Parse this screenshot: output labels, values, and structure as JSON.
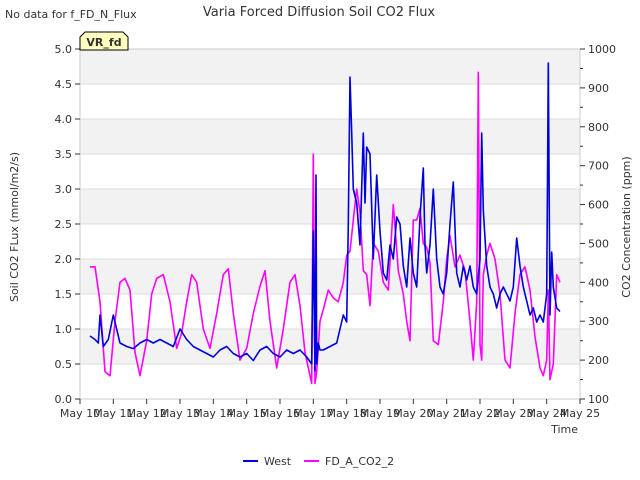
{
  "top_note": "No data for f_FD_N_Flux",
  "badge": "VR_fd",
  "colors": {
    "west": "#0000dd",
    "fd": "#ff00ff",
    "band": "#f2f2f2",
    "badge_bg": "#ffffc0",
    "badge_text": "#8b0000"
  },
  "chart_data": {
    "type": "line",
    "title": "Varia Forced Diffusion Soil CO2 Flux",
    "xlabel": "Time",
    "ylabel": "Soil CO2 FLux (mmol/m2/s)",
    "y2label": "CO2 Concentration (ppm)",
    "x_ticks": [
      "May 10",
      "May 11",
      "May 12",
      "May 13",
      "May 14",
      "May 15",
      "May 16",
      "May 17",
      "May 18",
      "May 19",
      "May 20",
      "May 21",
      "May 22",
      "May 23",
      "May 24",
      "May 25"
    ],
    "xlim": [
      10,
      25
    ],
    "ylim": [
      0,
      5
    ],
    "y_ticks": [
      "0.0",
      "0.5",
      "1.0",
      "1.5",
      "2.0",
      "2.5",
      "3.0",
      "3.5",
      "4.0",
      "4.5",
      "5.0"
    ],
    "y2lim": [
      100,
      1000
    ],
    "y2_ticks": [
      "100",
      "200",
      "300",
      "400",
      "500",
      "600",
      "700",
      "800",
      "900",
      "1000"
    ],
    "legend_position": "bottom-center",
    "series": [
      {
        "name": "West",
        "axis": "left",
        "x": [
          10.3,
          10.45,
          10.55,
          10.6,
          10.7,
          10.85,
          11.0,
          11.2,
          11.4,
          11.6,
          11.8,
          12.0,
          12.2,
          12.4,
          12.6,
          12.8,
          13.0,
          13.2,
          13.4,
          13.6,
          13.8,
          14.0,
          14.2,
          14.4,
          14.6,
          14.8,
          15.0,
          15.2,
          15.4,
          15.6,
          15.8,
          16.0,
          16.2,
          16.4,
          16.6,
          16.8,
          16.95,
          17.0,
          17.05,
          17.08,
          17.1,
          17.15,
          17.2,
          17.3,
          17.5,
          17.7,
          17.9,
          18.0,
          18.05,
          18.1,
          18.15,
          18.2,
          18.3,
          18.4,
          18.5,
          18.55,
          18.6,
          18.7,
          18.8,
          18.9,
          19.0,
          19.1,
          19.2,
          19.3,
          19.4,
          19.5,
          19.6,
          19.7,
          19.8,
          19.9,
          20.0,
          20.1,
          20.2,
          20.3,
          20.35,
          20.4,
          20.5,
          20.6,
          20.7,
          20.8,
          20.9,
          21.0,
          21.1,
          21.2,
          21.3,
          21.4,
          21.5,
          21.6,
          21.7,
          21.8,
          21.9,
          22.0,
          22.05,
          22.1,
          22.2,
          22.3,
          22.4,
          22.5,
          22.6,
          22.7,
          22.8,
          22.9,
          23.0,
          23.1,
          23.2,
          23.3,
          23.4,
          23.5,
          23.6,
          23.7,
          23.8,
          23.9,
          24.0,
          24.05,
          24.1,
          24.15,
          24.2,
          24.3,
          24.4
        ],
        "values": [
          0.9,
          0.85,
          0.8,
          1.2,
          0.75,
          0.85,
          1.2,
          0.8,
          0.75,
          0.72,
          0.8,
          0.85,
          0.8,
          0.85,
          0.8,
          0.75,
          1.0,
          0.85,
          0.75,
          0.7,
          0.65,
          0.6,
          0.7,
          0.75,
          0.65,
          0.6,
          0.65,
          0.55,
          0.7,
          0.75,
          0.65,
          0.6,
          0.7,
          0.65,
          0.7,
          0.6,
          0.5,
          2.4,
          0.4,
          3.2,
          0.5,
          0.8,
          0.7,
          0.7,
          0.75,
          0.8,
          1.2,
          1.1,
          2.5,
          4.6,
          3.8,
          3.0,
          2.8,
          2.2,
          3.8,
          2.8,
          3.6,
          3.5,
          2.0,
          3.2,
          2.4,
          1.8,
          1.7,
          2.2,
          2.0,
          2.6,
          2.5,
          1.9,
          1.6,
          2.3,
          1.8,
          1.6,
          2.6,
          3.3,
          2.2,
          1.8,
          2.2,
          3.0,
          2.0,
          1.6,
          1.5,
          1.8,
          2.5,
          3.1,
          1.8,
          1.6,
          1.9,
          1.7,
          1.9,
          1.6,
          1.5,
          2.0,
          3.8,
          2.7,
          1.9,
          1.6,
          1.5,
          1.3,
          1.5,
          1.6,
          1.5,
          1.4,
          1.6,
          2.3,
          1.9,
          1.6,
          1.4,
          1.2,
          1.3,
          1.1,
          1.2,
          1.1,
          1.5,
          4.8,
          1.2,
          2.1,
          1.6,
          1.3,
          1.25
        ]
      },
      {
        "name": "FD_A_CO2_2",
        "axis": "right",
        "x": [
          10.3,
          10.45,
          10.6,
          10.75,
          10.9,
          11.05,
          11.2,
          11.35,
          11.5,
          11.65,
          11.8,
          12.0,
          12.15,
          12.3,
          12.5,
          12.7,
          12.9,
          13.05,
          13.2,
          13.35,
          13.5,
          13.7,
          13.9,
          14.1,
          14.3,
          14.45,
          14.6,
          14.8,
          15.0,
          15.2,
          15.4,
          15.55,
          15.7,
          15.9,
          16.1,
          16.3,
          16.45,
          16.6,
          16.75,
          16.9,
          16.95,
          17.0,
          17.05,
          17.1,
          17.2,
          17.3,
          17.45,
          17.6,
          17.75,
          17.9,
          18.0,
          18.1,
          18.2,
          18.3,
          18.4,
          18.5,
          18.6,
          18.7,
          18.8,
          18.95,
          19.1,
          19.25,
          19.4,
          19.55,
          19.7,
          19.8,
          19.9,
          20.0,
          20.1,
          20.2,
          20.3,
          20.4,
          20.5,
          20.6,
          20.75,
          20.9,
          21.0,
          21.1,
          21.25,
          21.4,
          21.55,
          21.7,
          21.8,
          21.9,
          21.95,
          22.0,
          22.05,
          22.1,
          22.2,
          22.3,
          22.45,
          22.6,
          22.75,
          22.9,
          23.05,
          23.2,
          23.35,
          23.5,
          23.65,
          23.8,
          23.9,
          24.0,
          24.05,
          24.1,
          24.2,
          24.3,
          24.4
        ],
        "values": [
          440,
          440,
          350,
          170,
          160,
          300,
          400,
          410,
          380,
          220,
          160,
          250,
          370,
          410,
          420,
          350,
          230,
          270,
          350,
          420,
          400,
          280,
          230,
          320,
          420,
          435,
          320,
          200,
          230,
          320,
          390,
          430,
          300,
          180,
          280,
          400,
          420,
          340,
          220,
          160,
          140,
          730,
          140,
          170,
          300,
          330,
          380,
          360,
          350,
          400,
          470,
          480,
          560,
          640,
          580,
          430,
          420,
          340,
          500,
          480,
          400,
          380,
          600,
          430,
          370,
          300,
          250,
          560,
          560,
          590,
          500,
          490,
          450,
          250,
          240,
          350,
          460,
          520,
          440,
          470,
          430,
          300,
          200,
          350,
          940,
          240,
          200,
          420,
          470,
          500,
          460,
          370,
          200,
          180,
          320,
          420,
          440,
          380,
          260,
          180,
          160,
          200,
          380,
          150,
          190,
          420,
          400
        ]
      }
    ]
  }
}
